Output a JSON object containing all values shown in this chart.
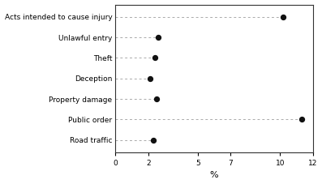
{
  "categories": [
    "Road traffic",
    "Public order",
    "Property damage",
    "Deception",
    "Theft",
    "Unlawful entry",
    "Acts intended to cause injury"
  ],
  "values": [
    2.3,
    11.3,
    2.5,
    2.1,
    2.4,
    2.6,
    10.2
  ],
  "dot_color": "#111111",
  "line_color": "#aaaaaa",
  "xlabel": "%",
  "xlim": [
    0,
    12
  ],
  "xticks": [
    0,
    2,
    5,
    7,
    10,
    12
  ],
  "background_color": "#ffffff",
  "dot_size": 18,
  "label_fontsize": 6.5,
  "tick_fontsize": 6.5,
  "xlabel_fontsize": 8
}
